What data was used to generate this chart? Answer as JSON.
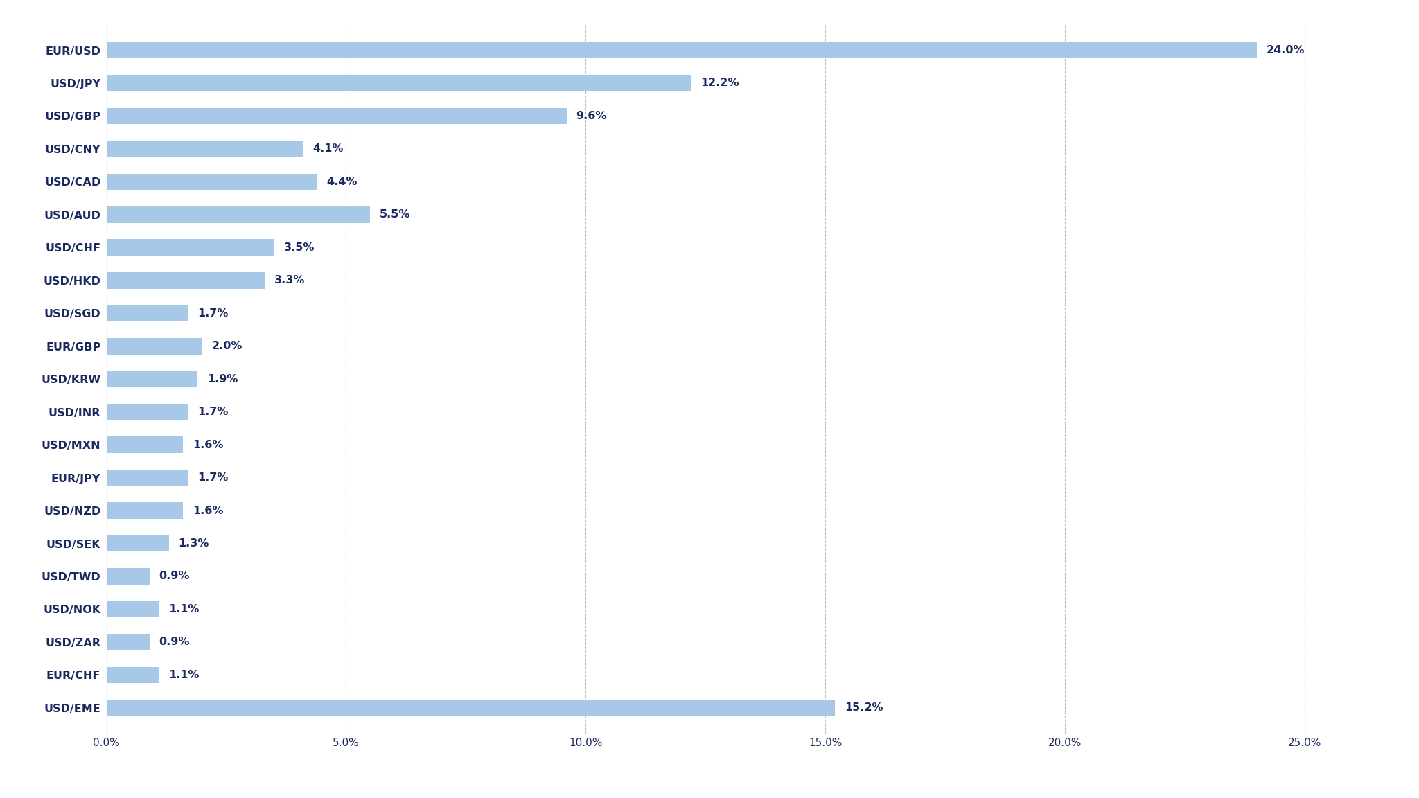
{
  "categories": [
    "EUR/USD",
    "USD/JPY",
    "USD/GBP",
    "USD/CNY",
    "USD/CAD",
    "USD/AUD",
    "USD/CHF",
    "USD/HKD",
    "USD/SGD",
    "EUR/GBP",
    "USD/KRW",
    "USD/INR",
    "USD/MXN",
    "EUR/JPY",
    "USD/NZD",
    "USD/SEK",
    "USD/TWD",
    "USD/NOK",
    "USD/ZAR",
    "EUR/CHF",
    "USD/EME"
  ],
  "values": [
    24.0,
    12.2,
    9.6,
    4.1,
    4.4,
    5.5,
    3.5,
    3.3,
    1.7,
    2.0,
    1.9,
    1.7,
    1.6,
    1.7,
    1.6,
    1.3,
    0.9,
    1.1,
    0.9,
    1.1,
    15.2
  ],
  "bar_color": "#a8c8e8",
  "label_color": "#1a2a5e",
  "tick_color": "#1a2a5e",
  "background_color": "#ffffff",
  "grid_color": "#bbbbbb",
  "xlim": [
    0,
    26.5
  ],
  "xticks": [
    0,
    5,
    10,
    15,
    20,
    25
  ],
  "xtick_labels": [
    "0.0%",
    "5.0%",
    "10.0%",
    "15.0%",
    "20.0%",
    "25.0%"
  ],
  "label_fontsize": 11.5,
  "tick_fontsize": 11,
  "bar_label_fontsize": 11.5,
  "bar_height": 0.5,
  "figsize": [
    20.48,
    11.52
  ],
  "dpi": 100
}
